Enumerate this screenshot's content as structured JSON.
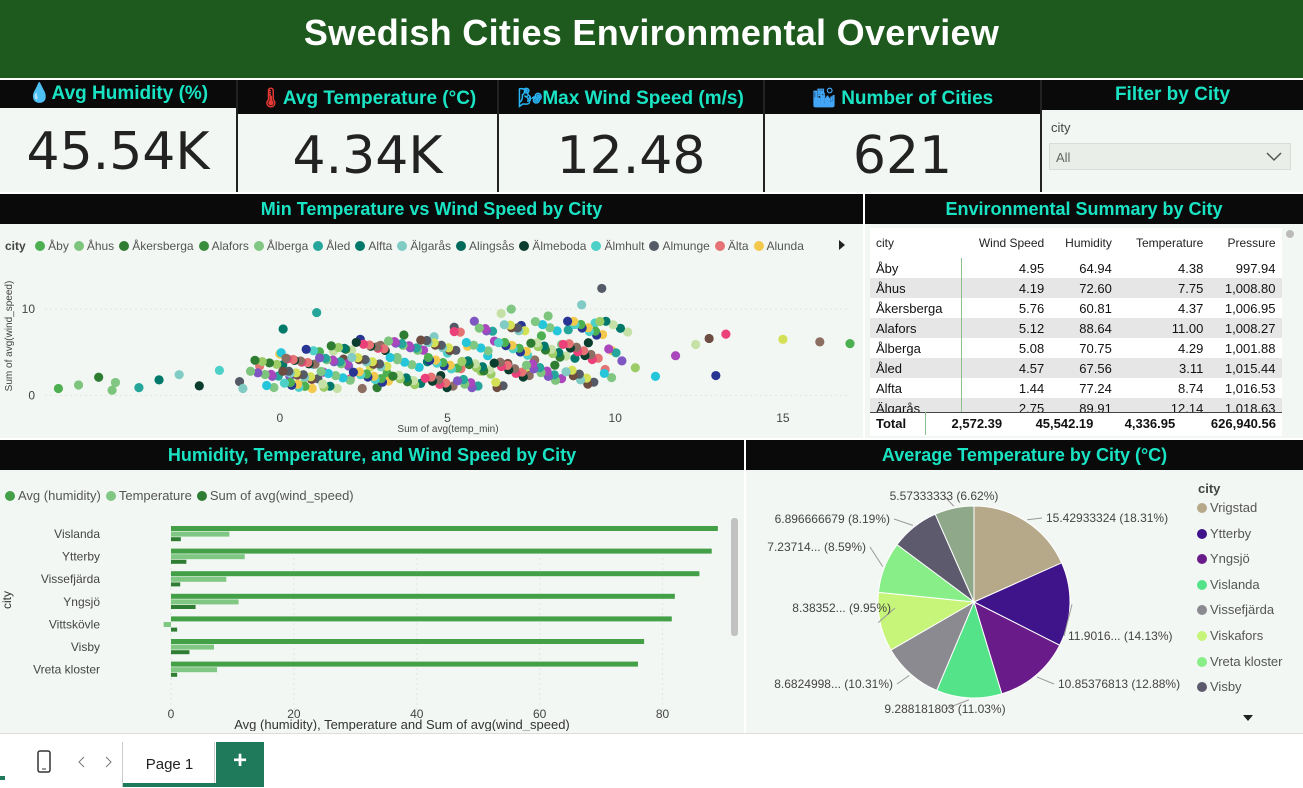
{
  "header": {
    "title": "Swedish Cities Environmental Overview"
  },
  "kpis": [
    {
      "icon": "droplet-icon",
      "label": "Avg Humidity (%)",
      "value": "45.54K"
    },
    {
      "icon": "thermometer-icon",
      "label": "Avg Temperature (°C)",
      "value": "4.34K"
    },
    {
      "icon": "wind-icon",
      "label": "Max Wind Speed (m/s)",
      "value": "12.48"
    },
    {
      "icon": "city-icon",
      "label": "Number of Cities",
      "value": "621"
    }
  ],
  "filter": {
    "title": "Filter by City",
    "field_label": "city",
    "selected": "All"
  },
  "scatter": {
    "title": "Min Temperature vs Wind Speed by City",
    "legend_label": "city",
    "legend": [
      {
        "name": "Åby",
        "color": "#4caf50"
      },
      {
        "name": "Åhus",
        "color": "#7dc47d"
      },
      {
        "name": "Åkersberga",
        "color": "#2e7d32"
      },
      {
        "name": "Alafors",
        "color": "#388e3c"
      },
      {
        "name": "Ålberga",
        "color": "#81c784"
      },
      {
        "name": "Åled",
        "color": "#26a69a"
      },
      {
        "name": "Alfta",
        "color": "#00796b"
      },
      {
        "name": "Älgarås",
        "color": "#80cbc4"
      },
      {
        "name": "Alingsås",
        "color": "#00695c"
      },
      {
        "name": "Älmeboda",
        "color": "#0b3d2e"
      },
      {
        "name": "Älmhult",
        "color": "#4dd0c8"
      },
      {
        "name": "Almunge",
        "color": "#555b66"
      },
      {
        "name": "Älta",
        "color": "#e57373"
      },
      {
        "name": "Alunda",
        "color": "#f2c94c"
      }
    ]
  },
  "summary": {
    "title": "Environmental Summary by City",
    "columns": [
      "city",
      "Wind Speed",
      "Humidity",
      "Temperature",
      "Pressure"
    ],
    "rows": [
      [
        "Åby",
        "4.95",
        "64.94",
        "4.38",
        "997.94"
      ],
      [
        "Åhus",
        "4.19",
        "72.60",
        "7.75",
        "1,008.80"
      ],
      [
        "Åkersberga",
        "5.76",
        "60.81",
        "4.37",
        "1,006.95"
      ],
      [
        "Alafors",
        "5.12",
        "88.64",
        "11.00",
        "1,008.27"
      ],
      [
        "Ålberga",
        "5.08",
        "70.75",
        "4.29",
        "1,001.88"
      ],
      [
        "Åled",
        "4.57",
        "67.56",
        "3.11",
        "1,015.44"
      ],
      [
        "Alfta",
        "1.44",
        "77.24",
        "8.74",
        "1,016.53"
      ],
      [
        "Älgarås",
        "2.75",
        "89.91",
        "12.14",
        "1,018.63"
      ]
    ],
    "total": [
      "Total",
      "2,572.39",
      "45,542.19",
      "4,336.95",
      "626,940.56"
    ]
  },
  "barchart": {
    "title": "Humidity, Temperature, and Wind Speed by City",
    "ylabel": "city"
  },
  "piechart": {
    "title": "Average Temperature by City (°C)",
    "legend_title": "city"
  },
  "footer": {
    "page_tab": "Page 1",
    "add_label": "+"
  },
  "chart_data": [
    {
      "type": "scatter",
      "title": "Min Temperature vs Wind Speed by City",
      "xlabel": "Sum of avg(temp_min)",
      "ylabel": "Sum of avg(wind_speed)",
      "xlim": [
        -7,
        17
      ],
      "ylim": [
        -1,
        15
      ],
      "xticks": [
        "0",
        "5",
        "10",
        "15"
      ],
      "yticks": [
        "0",
        "10"
      ],
      "points": [
        [
          -6.6,
          0.8
        ],
        [
          -6.0,
          1.2
        ],
        [
          -5.4,
          2.1
        ],
        [
          -4.9,
          1.5
        ],
        [
          -4.2,
          0.9
        ],
        [
          -3.6,
          1.8
        ],
        [
          -3.0,
          2.4
        ],
        [
          -2.4,
          1.1
        ],
        [
          -1.8,
          2.9
        ],
        [
          -1.2,
          1.6
        ],
        [
          -0.6,
          3.4
        ],
        [
          0.0,
          4.8
        ],
        [
          0.3,
          2.2
        ],
        [
          0.7,
          1.3
        ],
        [
          1.0,
          3.6
        ],
        [
          1.3,
          2.7
        ],
        [
          1.6,
          5.1
        ],
        [
          1.9,
          4.2
        ],
        [
          2.1,
          1.9
        ],
        [
          2.4,
          6.5
        ],
        [
          2.7,
          3.3
        ],
        [
          3.0,
          5.8
        ],
        [
          3.2,
          2.6
        ],
        [
          3.5,
          4.4
        ],
        [
          3.7,
          7.0
        ],
        [
          3.9,
          1.7
        ],
        [
          4.2,
          5.3
        ],
        [
          4.4,
          3.9
        ],
        [
          4.6,
          6.8
        ],
        [
          4.8,
          2.3
        ],
        [
          5.0,
          4.9
        ],
        [
          5.2,
          7.9
        ],
        [
          5.4,
          3.1
        ],
        [
          5.6,
          5.7
        ],
        [
          5.8,
          8.6
        ],
        [
          6.0,
          2.8
        ],
        [
          6.2,
          4.6
        ],
        [
          6.4,
          6.3
        ],
        [
          6.6,
          9.5
        ],
        [
          6.8,
          3.7
        ],
        [
          7.0,
          5.5
        ],
        [
          7.2,
          8.1
        ],
        [
          7.4,
          2.5
        ],
        [
          7.6,
          4.1
        ],
        [
          7.8,
          6.9
        ],
        [
          8.0,
          9.2
        ],
        [
          8.2,
          3.5
        ],
        [
          8.4,
          5.9
        ],
        [
          8.6,
          7.6
        ],
        [
          8.8,
          4.3
        ],
        [
          9.0,
          10.5
        ],
        [
          9.2,
          6.1
        ],
        [
          9.4,
          8.4
        ],
        [
          9.6,
          12.4
        ],
        [
          9.7,
          3.0
        ],
        [
          9.9,
          5.2
        ],
        [
          10.2,
          4.0
        ],
        [
          10.6,
          3.2
        ],
        [
          11.2,
          2.2
        ],
        [
          11.8,
          4.6
        ],
        [
          12.4,
          5.9
        ],
        [
          12.8,
          6.6
        ],
        [
          13.3,
          7.1
        ],
        [
          13.0,
          2.3
        ],
        [
          15.0,
          6.5
        ],
        [
          16.1,
          6.2
        ],
        [
          17.0,
          6.0
        ],
        [
          -5.0,
          0.6
        ],
        [
          2.9,
          0.9
        ],
        [
          6.9,
          10.0
        ],
        [
          1.1,
          9.6
        ],
        [
          0.1,
          7.7
        ]
      ]
    },
    {
      "type": "bar",
      "title": "Humidity, Temperature, and Wind Speed by City",
      "xlabel": "Avg (humidity), Temperature and Sum of avg(wind_speed)",
      "ylabel": "city",
      "xlim": [
        0,
        90
      ],
      "xticks": [
        "0",
        "20",
        "40",
        "60",
        "80"
      ],
      "categories": [
        "Vislanda",
        "Ytterby",
        "Vissefjärda",
        "Yngsjö",
        "Vittskövle",
        "Visby",
        "Vreta kloster"
      ],
      "series": [
        {
          "name": "Avg (humidity)",
          "color": "#43a047",
          "values": [
            89,
            88,
            86,
            82,
            81.5,
            77,
            76
          ]
        },
        {
          "name": "Temperature",
          "color": "#81c784",
          "values": [
            9.5,
            12,
            9,
            11,
            -1.2,
            7,
            7.5
          ]
        },
        {
          "name": "Sum of avg(wind_speed)",
          "color": "#2e7d32",
          "values": [
            1.6,
            2.5,
            1.5,
            4,
            1,
            3,
            1
          ]
        }
      ]
    },
    {
      "type": "pie",
      "title": "Average Temperature by City (°C)",
      "slices": [
        {
          "name": "Vrigstad",
          "value": 15.42933324,
          "pct": "18.31%",
          "label": "15.42933324 (18.31%)",
          "color": "#b5a98a"
        },
        {
          "name": "Ytterby",
          "value": 11.9016,
          "pct": "14.13%",
          "label": "11.9016... (14.13%)",
          "color": "#3f148a"
        },
        {
          "name": "Yngsjö",
          "value": 10.85376813,
          "pct": "12.88%",
          "label": "10.85376813 (12.88%)",
          "color": "#6a1b8a"
        },
        {
          "name": "Vislanda",
          "value": 9.288181803,
          "pct": "11.03%",
          "label": "9.288181803 (11.03%)",
          "color": "#55e38a"
        },
        {
          "name": "Vissefjärda",
          "value": 8.6824998,
          "pct": "10.31%",
          "label": "8.6824998... (10.31%)",
          "color": "#8a8a90"
        },
        {
          "name": "Viskafors",
          "value": 8.38352,
          "pct": "9.95%",
          "label": "8.38352... (9.95%)",
          "color": "#c6f57a"
        },
        {
          "name": "Vreta kloster",
          "value": 7.23714,
          "pct": "8.59%",
          "label": "7.23714... (8.59%)",
          "color": "#88ee88"
        },
        {
          "name": "Visby",
          "value": 6.896666679,
          "pct": "8.19%",
          "label": "6.896666679 (8.19%)",
          "color": "#5e5a6e"
        },
        {
          "name": "",
          "value": 5.57333333,
          "pct": "6.62%",
          "label": "5.57333333 (6.62%)",
          "color": "#8fa88a"
        }
      ]
    }
  ]
}
